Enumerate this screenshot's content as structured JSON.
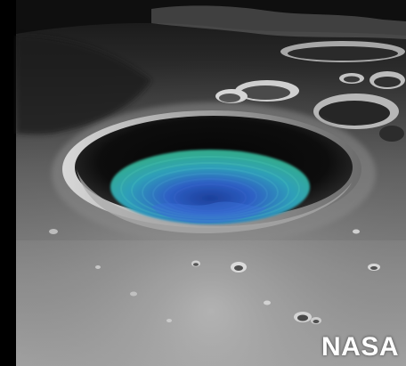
{
  "image": {
    "subject": "lunar-crater-illustration",
    "credit_text": "NASA",
    "colors": {
      "background": "#000000",
      "regolith_light": "#cfcfcf",
      "regolith_mid": "#8d8d8d",
      "regolith_dark": "#3c3c3c",
      "ice_teal": "#39c7a8",
      "ice_blue": "#2d5fc4",
      "ice_deep": "#1c3f9a"
    }
  }
}
